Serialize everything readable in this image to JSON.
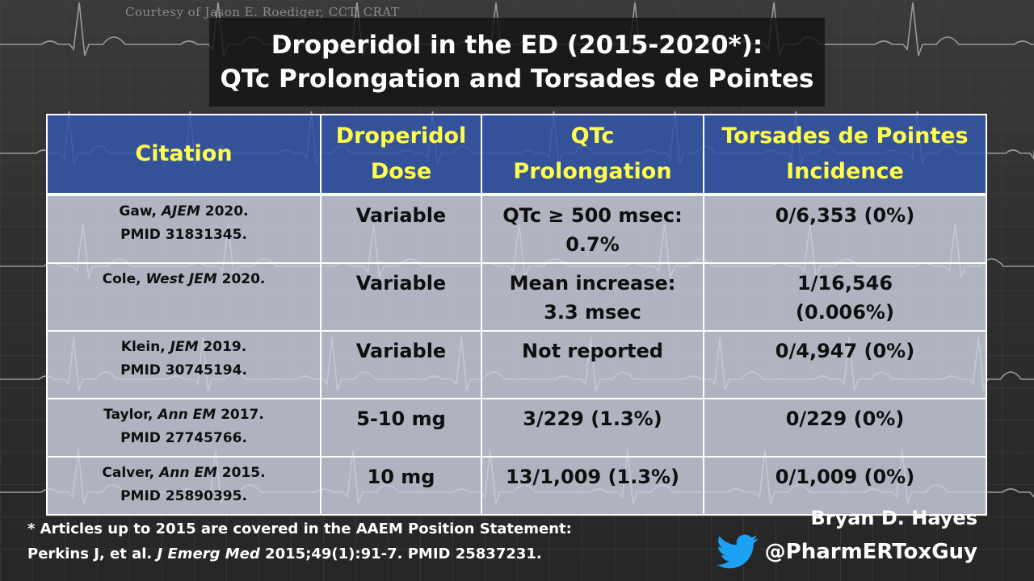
{
  "courtesy": "Courtesy of Jason E. Roediger, CCT, CRAT",
  "title": {
    "line1": "Droperidol in the ED (2015-2020*):",
    "line2": "QTc Prolongation and Torsades de Pointes"
  },
  "table": {
    "headers": [
      {
        "line1": "Citation",
        "line2": ""
      },
      {
        "line1": "Droperidol",
        "line2": "Dose"
      },
      {
        "line1": "QTc",
        "line2": "Prolongation"
      },
      {
        "line1": "Torsades de Pointes",
        "line2": "Incidence"
      }
    ],
    "rows": [
      {
        "author": "Gaw, ",
        "journal": "AJEM",
        "year": " 2020.",
        "pmid": "PMID 31831345.",
        "dose": "Variable",
        "qtc_line1": "QTc ≥ 500 msec:",
        "qtc_line2": "0.7%",
        "tdp_line1": "0/6,353 (0%)",
        "tdp_line2": ""
      },
      {
        "author": "Cole, ",
        "journal": "West JEM",
        "year": " 2020.",
        "pmid": "",
        "dose": "Variable",
        "qtc_line1": "Mean increase:",
        "qtc_line2": "3.3 msec",
        "tdp_line1": "1/16,546",
        "tdp_line2": "(0.006%)"
      },
      {
        "author": "Klein, ",
        "journal": "JEM",
        "year": " 2019.",
        "pmid": "PMID 30745194.",
        "dose": "Variable",
        "qtc_line1": "Not reported",
        "qtc_line2": "",
        "tdp_line1": "0/4,947 (0%)",
        "tdp_line2": ""
      },
      {
        "author": "Taylor, ",
        "journal": "Ann EM",
        "year": " 2017.",
        "pmid": "PMID 27745766.",
        "dose": "5-10 mg",
        "qtc_line1": "3/229 (1.3%)",
        "qtc_line2": "",
        "tdp_line1": "0/229 (0%)",
        "tdp_line2": ""
      },
      {
        "author": "Calver, ",
        "journal": "Ann EM",
        "year": " 2015.",
        "pmid": "PMID 25890395.",
        "dose": "10 mg",
        "qtc_line1": "13/1,009 (1.3%)",
        "qtc_line2": "",
        "tdp_line1": "0/1,009 (0%)",
        "tdp_line2": ""
      }
    ]
  },
  "footnote": {
    "line1": "* Articles up to 2015 are covered in the AAEM Position Statement:",
    "line2_prefix": "Perkins J, et al. ",
    "line2_journal": "J Emerg Med",
    "line2_suffix": " 2015;49(1):91-7. PMID 25837231."
  },
  "author": {
    "name": "Bryan D. Hayes",
    "handle": "@PharmERToxGuy",
    "icon": "twitter-bird-icon"
  },
  "colors": {
    "header_bg": "#3456a8",
    "header_text": "#ffff4d",
    "cell_bg": "#cdd2e0",
    "twitter_blue": "#1da1f2"
  }
}
